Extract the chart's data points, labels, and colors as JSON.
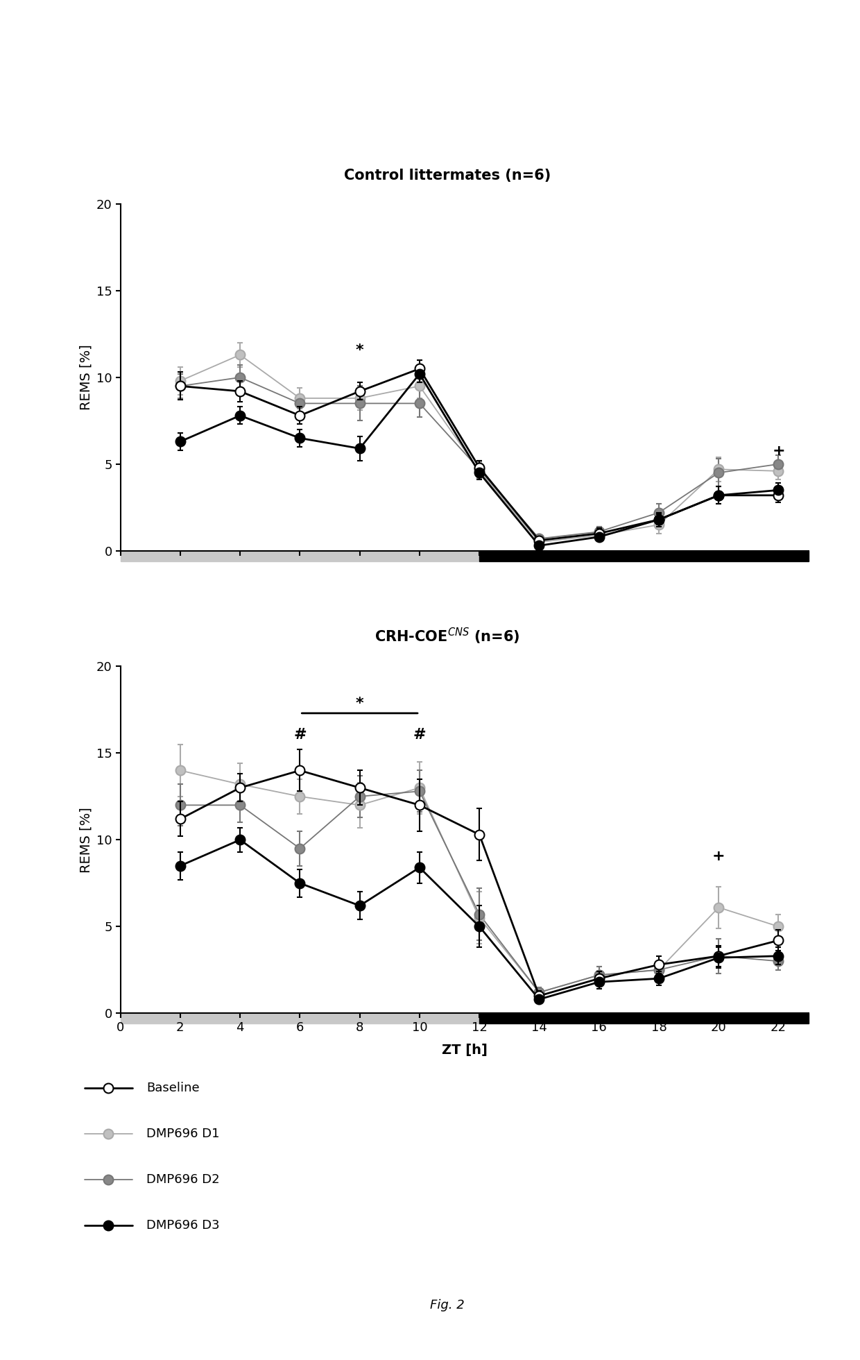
{
  "title1": "Control littermates (n=6)",
  "title2": "CRH-COE$^{CNS}$ (n=6)",
  "xlabel": "ZT [h]",
  "ylabel": "REMS [%]",
  "xticks": [
    0,
    2,
    4,
    6,
    8,
    10,
    12,
    14,
    16,
    18,
    20,
    22
  ],
  "ylim": [
    0,
    20
  ],
  "yticks": [
    0,
    5,
    10,
    15,
    20
  ],
  "xdata": [
    2,
    4,
    6,
    8,
    10,
    12,
    14,
    16,
    18,
    20,
    22
  ],
  "ctrl_baseline_y": [
    9.5,
    9.2,
    7.8,
    9.2,
    10.5,
    4.8,
    0.6,
    1.0,
    1.8,
    3.2,
    3.2
  ],
  "ctrl_baseline_e": [
    0.8,
    0.6,
    0.5,
    0.5,
    0.5,
    0.4,
    0.2,
    0.3,
    0.4,
    0.5,
    0.4
  ],
  "ctrl_d1_y": [
    9.8,
    11.3,
    8.8,
    8.8,
    9.5,
    4.6,
    0.5,
    0.9,
    1.5,
    4.7,
    4.6
  ],
  "ctrl_d1_e": [
    0.8,
    0.7,
    0.6,
    0.7,
    0.7,
    0.5,
    0.2,
    0.2,
    0.5,
    0.7,
    0.5
  ],
  "ctrl_d2_y": [
    9.5,
    10.0,
    8.5,
    8.5,
    8.5,
    4.7,
    0.7,
    1.1,
    2.2,
    4.5,
    5.0
  ],
  "ctrl_d2_e": [
    0.7,
    0.7,
    0.5,
    1.0,
    0.8,
    0.5,
    0.2,
    0.3,
    0.5,
    0.8,
    0.5
  ],
  "ctrl_d3_y": [
    6.3,
    7.8,
    6.5,
    5.9,
    10.2,
    4.5,
    0.3,
    0.8,
    1.8,
    3.2,
    3.5
  ],
  "ctrl_d3_e": [
    0.5,
    0.5,
    0.5,
    0.7,
    0.5,
    0.4,
    0.1,
    0.2,
    0.3,
    0.5,
    0.4
  ],
  "crh_baseline_y": [
    11.2,
    13.0,
    14.0,
    13.0,
    12.0,
    10.3,
    1.0,
    2.0,
    2.8,
    3.3,
    4.2
  ],
  "crh_baseline_e": [
    1.0,
    0.8,
    1.2,
    1.0,
    1.5,
    1.5,
    0.3,
    0.4,
    0.5,
    0.6,
    0.6
  ],
  "crh_d1_y": [
    14.0,
    13.2,
    12.5,
    12.0,
    13.0,
    5.5,
    1.2,
    2.2,
    2.5,
    6.1,
    5.0
  ],
  "crh_d1_e": [
    1.5,
    1.2,
    1.0,
    1.3,
    1.5,
    1.5,
    0.3,
    0.5,
    0.5,
    1.2,
    0.7
  ],
  "crh_d2_y": [
    12.0,
    12.0,
    9.5,
    12.5,
    12.8,
    5.7,
    1.2,
    2.2,
    2.5,
    3.3,
    3.0
  ],
  "crh_d2_e": [
    1.2,
    1.0,
    1.0,
    1.2,
    1.2,
    1.5,
    0.3,
    0.5,
    0.5,
    1.0,
    0.5
  ],
  "crh_d3_y": [
    8.5,
    10.0,
    7.5,
    6.2,
    8.4,
    5.0,
    0.8,
    1.8,
    2.0,
    3.2,
    3.3
  ],
  "crh_d3_e": [
    0.8,
    0.7,
    0.8,
    0.8,
    0.9,
    1.2,
    0.2,
    0.4,
    0.4,
    0.6,
    0.5
  ],
  "color_baseline": "#000000",
  "color_d1": "#aaaaaa",
  "color_d2": "#777777",
  "color_d3": "#000000",
  "fc_baseline": "#ffffff",
  "fc_d1": "#c0c0c0",
  "fc_d2": "#888888",
  "fc_d3": "#000000",
  "figcaption": "Fig. 2",
  "light_color": "#c8c8c8",
  "dark_color": "#000000"
}
